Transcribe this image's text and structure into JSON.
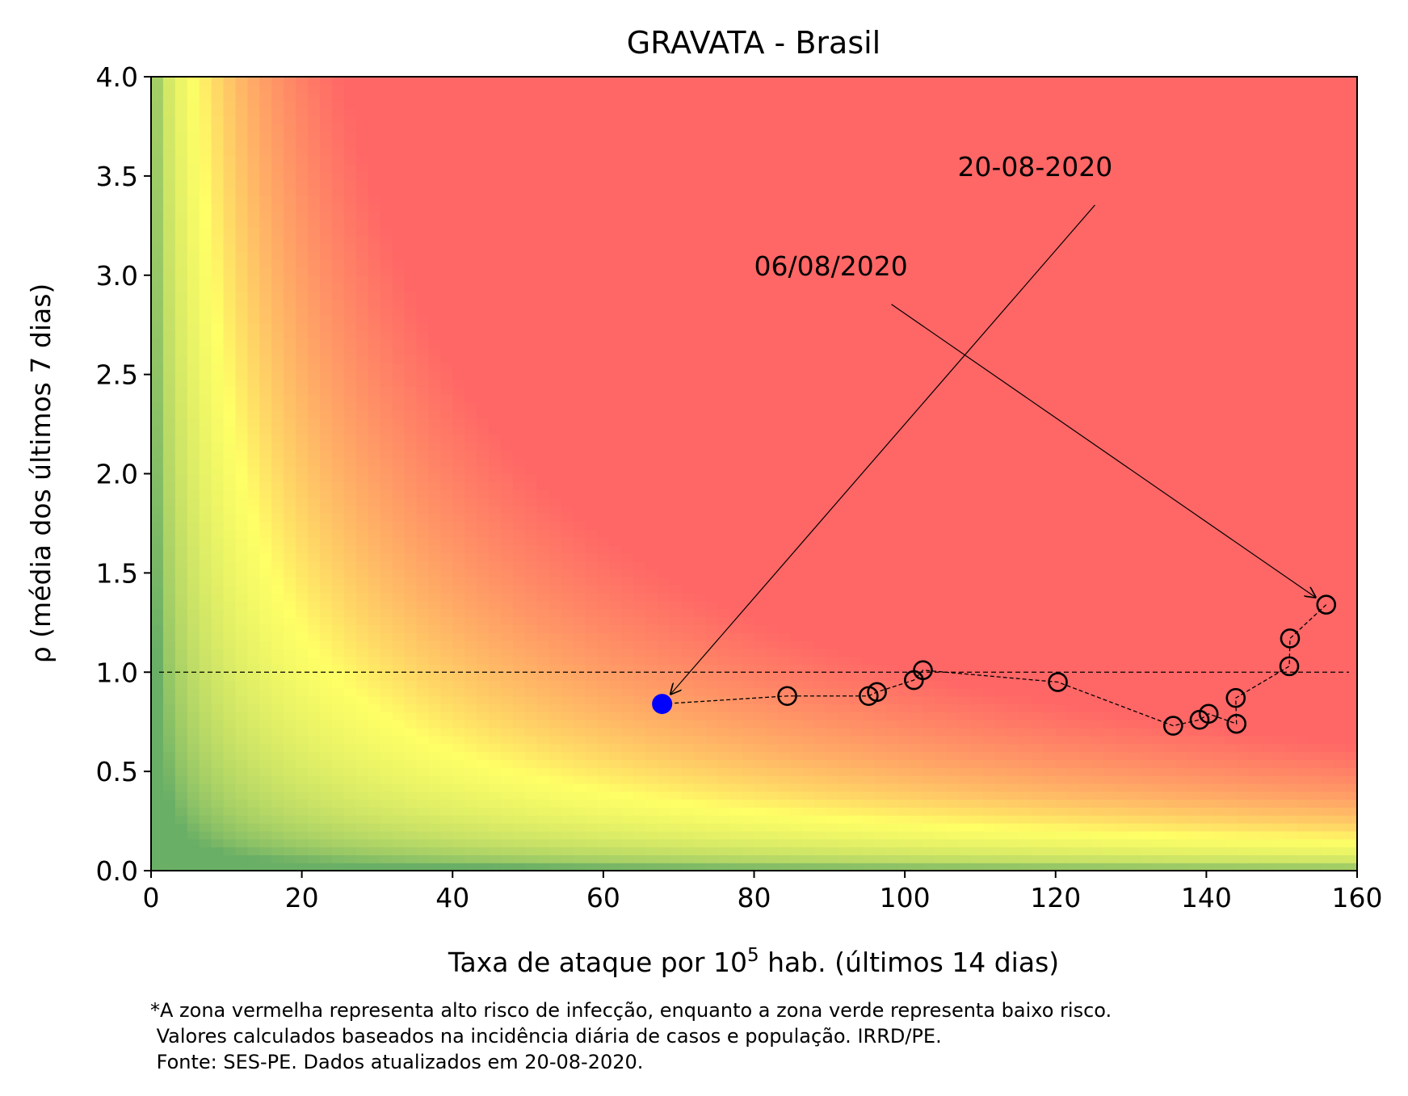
{
  "chart_data": {
    "type": "scatter",
    "title": "GRAVATA - Brasil",
    "xlabel": {
      "prefix": "Taxa de ataque por 10",
      "sup": "5",
      "suffix": " hab. (últimos 14 dias)"
    },
    "ylabel": "ρ (média dos últimos 7 dias)",
    "xlim": [
      0,
      160
    ],
    "ylim": [
      0,
      4
    ],
    "x_ticks": [
      "0",
      "20",
      "40",
      "60",
      "80",
      "100",
      "120",
      "140",
      "160"
    ],
    "y_ticks": [
      "0.0",
      "0.5",
      "1.0",
      "1.5",
      "2.0",
      "2.5",
      "3.0",
      "3.5",
      "4.0"
    ],
    "reference_line_y": 1.0,
    "grid": false,
    "background": "risk heatmap: green (low) → yellow → red (high), risk ∝ x·y",
    "colors": {
      "low": "#6aaf66",
      "mid": "#ffff66",
      "high": "#ff6666",
      "current_point": "#0000ff",
      "points": "#000000"
    },
    "series": [
      {
        "x": [
          155.9,
          151.1,
          151.0,
          143.9,
          144.0,
          140.3,
          139.1,
          135.6,
          120.3,
          102.4,
          101.2,
          96.3,
          95.2,
          84.4,
          67.8
        ],
        "y": [
          1.34,
          1.17,
          1.03,
          0.87,
          0.74,
          0.79,
          0.76,
          0.73,
          0.95,
          1.01,
          0.96,
          0.9,
          0.88,
          0.88,
          0.84
        ]
      }
    ],
    "annotations": [
      {
        "text": "06/08/2020",
        "text_x": 80,
        "text_y": 3.0,
        "point_x": 155.9,
        "point_y": 1.34
      },
      {
        "text": "20-08-2020",
        "text_x": 107,
        "text_y": 3.5,
        "point_x": 67.8,
        "point_y": 0.84
      }
    ]
  },
  "footnote": [
    "*A zona vermelha representa alto risco de infecção, enquanto a zona verde representa baixo risco.",
    " Valores calculados baseados na incidência diária de casos e população. IRRD/PE.",
    " Fonte: SES-PE. Dados atualizados em 20-08-2020."
  ]
}
